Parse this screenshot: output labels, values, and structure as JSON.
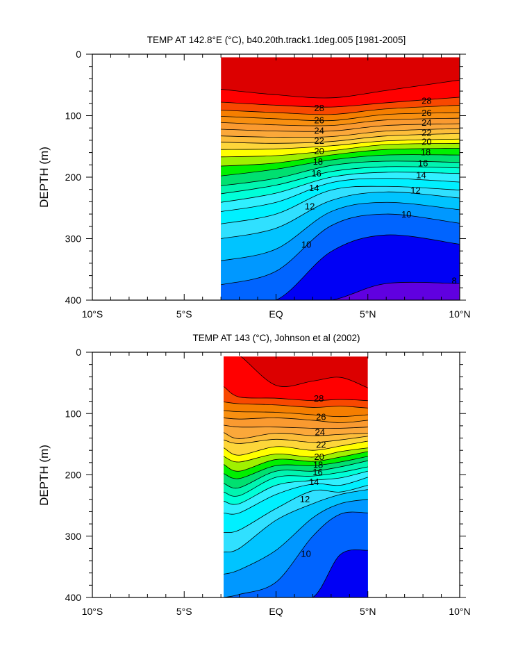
{
  "chart_data": [
    {
      "type": "contour",
      "title": "TEMP AT 142.8°E (°C), b40.20th.track1.1deg.005 [1981-2005]",
      "xlabel": "",
      "ylabel": "DEPTH (m)",
      "xlim": [
        -10,
        10
      ],
      "ylim": [
        400,
        0
      ],
      "x_ticks": [
        -10,
        -5,
        0,
        5,
        10
      ],
      "x_tick_labels": [
        "10°S",
        "5°S",
        "EQ",
        "5°N",
        "10°N"
      ],
      "y_ticks": [
        0,
        100,
        200,
        300,
        400
      ],
      "y_tick_labels": [
        "0",
        "100",
        "200",
        "300",
        "400"
      ],
      "data_extent": {
        "lat": [
          -3,
          10
        ],
        "depth_top": 5
      },
      "stations_lat": [
        -3,
        0,
        3,
        6,
        10
      ],
      "isotherms": [
        {
          "level": 29,
          "depth": [
            57,
            66,
            71,
            59,
            42
          ]
        },
        {
          "level": 28,
          "depth": [
            78,
            83,
            86,
            79,
            70
          ]
        },
        {
          "level": 27,
          "depth": [
            91,
            95,
            98,
            89,
            83
          ]
        },
        {
          "level": 26,
          "depth": [
            101,
            105,
            108,
            98,
            95
          ]
        },
        {
          "level": 25,
          "depth": [
            111,
            115,
            116,
            107,
            104
          ]
        },
        {
          "level": 24,
          "depth": [
            122,
            125,
            125,
            116,
            113
          ]
        },
        {
          "level": 23,
          "depth": [
            133,
            135,
            134,
            125,
            121
          ]
        },
        {
          "level": 22,
          "depth": [
            143,
            145,
            142,
            133,
            129
          ]
        },
        {
          "level": 21,
          "depth": [
            155,
            154,
            149,
            141,
            138
          ]
        },
        {
          "level": 20,
          "depth": [
            167,
            165,
            157,
            147,
            145
          ]
        },
        {
          "level": 19,
          "depth": [
            182,
            177,
            164,
            155,
            153
          ]
        },
        {
          "level": 18,
          "depth": [
            198,
            187,
            172,
            164,
            164
          ]
        },
        {
          "level": 17,
          "depth": [
            214,
            202,
            181,
            174,
            176
          ]
        },
        {
          "level": 16,
          "depth": [
            227,
            213,
            191,
            183,
            185
          ]
        },
        {
          "level": 15,
          "depth": [
            241,
            226,
            200,
            192,
            194
          ]
        },
        {
          "level": 14,
          "depth": [
            256,
            241,
            209,
            202,
            208
          ]
        },
        {
          "level": 13,
          "depth": [
            276,
            260,
            221,
            215,
            221
          ]
        },
        {
          "level": 12,
          "depth": [
            300,
            283,
            238,
            224,
            234
          ]
        },
        {
          "level": 11,
          "depth": [
            336,
            317,
            256,
            241,
            253
          ]
        },
        {
          "level": 10,
          "depth": [
            375,
            353,
            279,
            260,
            275
          ]
        },
        {
          "level": 9,
          "depth": [
            400,
            400,
            321,
            294,
            309
          ]
        },
        {
          "level": 8,
          "depth": [
            400,
            400,
            400,
            373,
            373
          ]
        }
      ],
      "contour_labels": [
        {
          "text": "28",
          "lat": 2.35,
          "depth": 87
        },
        {
          "text": "26",
          "lat": 2.35,
          "depth": 107
        },
        {
          "text": "24",
          "lat": 2.35,
          "depth": 124
        },
        {
          "text": "22",
          "lat": 2.35,
          "depth": 140
        },
        {
          "text": "20",
          "lat": 2.35,
          "depth": 157
        },
        {
          "text": "18",
          "lat": 2.28,
          "depth": 174
        },
        {
          "text": "16",
          "lat": 2.2,
          "depth": 193
        },
        {
          "text": "14",
          "lat": 2.07,
          "depth": 217
        },
        {
          "text": "12",
          "lat": 1.84,
          "depth": 247
        },
        {
          "text": "10",
          "lat": 1.65,
          "depth": 309
        },
        {
          "text": "28",
          "lat": 8.2,
          "depth": 75
        },
        {
          "text": "26",
          "lat": 8.2,
          "depth": 95
        },
        {
          "text": "24",
          "lat": 8.2,
          "depth": 111
        },
        {
          "text": "22",
          "lat": 8.2,
          "depth": 127
        },
        {
          "text": "20",
          "lat": 8.2,
          "depth": 142
        },
        {
          "text": "18",
          "lat": 8.15,
          "depth": 159
        },
        {
          "text": "16",
          "lat": 8.0,
          "depth": 177
        },
        {
          "text": "14",
          "lat": 7.9,
          "depth": 196
        },
        {
          "text": "12",
          "lat": 7.6,
          "depth": 221
        },
        {
          "text": "10",
          "lat": 7.1,
          "depth": 260
        },
        {
          "text": "8",
          "lat": 9.7,
          "depth": 368
        }
      ]
    },
    {
      "type": "contour",
      "title": "TEMP AT 143 (°C), Johnson et al (2002)",
      "xlabel": "",
      "ylabel": "DEPTH (m)",
      "xlim": [
        -10,
        10
      ],
      "ylim": [
        400,
        0
      ],
      "x_ticks": [
        -10,
        -5,
        0,
        5,
        10
      ],
      "x_tick_labels": [
        "10°S",
        "5°S",
        "EQ",
        "5°N",
        "10°N"
      ],
      "y_ticks": [
        0,
        100,
        200,
        300,
        400
      ],
      "y_tick_labels": [
        "0",
        "100",
        "200",
        "300",
        "400"
      ],
      "data_extent": {
        "lat": [
          -2.85,
          5
        ],
        "depth_top": 7
      },
      "stations_lat": [
        -2.85,
        -2,
        0,
        2,
        3.5,
        5
      ],
      "isotherms": [
        {
          "level": 29,
          "depth": [
            0,
            5,
            54,
            47,
            41,
            58
          ]
        },
        {
          "level": 28,
          "depth": [
            56,
            73,
            75,
            79,
            77,
            79
          ]
        },
        {
          "level": 27,
          "depth": [
            81,
            84,
            86,
            90,
            88,
            91
          ]
        },
        {
          "level": 26,
          "depth": [
            95,
            97,
            98,
            102,
            105,
            102
          ]
        },
        {
          "level": 25,
          "depth": [
            107,
            109,
            107,
            111,
            115,
            111
          ]
        },
        {
          "level": 24,
          "depth": [
            119,
            122,
            122,
            124,
            124,
            122
          ]
        },
        {
          "level": 23,
          "depth": [
            131,
            141,
            132,
            136,
            134,
            132
          ]
        },
        {
          "level": 22,
          "depth": [
            143,
            149,
            142,
            147,
            143,
            137
          ]
        },
        {
          "level": 21,
          "depth": [
            156,
            168,
            154,
            160,
            153,
            145
          ]
        },
        {
          "level": 20,
          "depth": [
            170,
            179,
            166,
            171,
            162,
            156
          ]
        },
        {
          "level": 19,
          "depth": [
            183,
            194,
            175,
            178,
            171,
            162
          ]
        },
        {
          "level": 18,
          "depth": [
            198,
            206,
            185,
            185,
            179,
            170
          ]
        },
        {
          "level": 17,
          "depth": [
            214,
            221,
            194,
            194,
            187,
            177
          ]
        },
        {
          "level": 16,
          "depth": [
            228,
            234,
            204,
            202,
            196,
            187
          ]
        },
        {
          "level": 15,
          "depth": [
            243,
            247,
            217,
            209,
            205,
            194
          ]
        },
        {
          "level": 14,
          "depth": [
            262,
            262,
            232,
            215,
            217,
            204
          ]
        },
        {
          "level": 13,
          "depth": [
            294,
            290,
            255,
            226,
            228,
            217
          ]
        },
        {
          "level": 12,
          "depth": [
            326,
            320,
            274,
            247,
            232,
            224
          ]
        },
        {
          "level": 11,
          "depth": [
            362,
            355,
            323,
            270,
            247,
            240
          ]
        },
        {
          "level": 10,
          "depth": [
            400,
            395,
            375,
            300,
            264,
            262
          ]
        },
        {
          "level": 9,
          "depth": [
            400,
            400,
            400,
            400,
            330,
            323
          ]
        }
      ],
      "contour_labels": [
        {
          "text": "28",
          "lat": 2.33,
          "depth": 75
        },
        {
          "text": "26",
          "lat": 2.45,
          "depth": 105
        },
        {
          "text": "24",
          "lat": 2.39,
          "depth": 130
        },
        {
          "text": "22",
          "lat": 2.45,
          "depth": 150
        },
        {
          "text": "20",
          "lat": 2.35,
          "depth": 170
        },
        {
          "text": "18",
          "lat": 2.29,
          "depth": 183
        },
        {
          "text": "16",
          "lat": 2.27,
          "depth": 195
        },
        {
          "text": "14",
          "lat": 2.07,
          "depth": 211
        },
        {
          "text": "12",
          "lat": 1.57,
          "depth": 239
        },
        {
          "text": "10",
          "lat": 1.63,
          "depth": 328
        }
      ]
    }
  ],
  "colors": {
    "above_29": "#dc0000",
    "band_below": {
      "29": "#ff0000",
      "28": "#f84800",
      "27": "#f57e00",
      "26": "#f88f10",
      "25": "#fa9a30",
      "24": "#fba83a",
      "23": "#fcbd3a",
      "22": "#fdd63a",
      "21": "#ffff00",
      "20": "#a0f000",
      "19": "#00f000",
      "18": "#00e070",
      "17": "#00f5b0",
      "16": "#00ffd8",
      "15": "#30f0ff",
      "14": "#00f0ff",
      "13": "#30e0ff",
      "12": "#00c4ff",
      "11": "#0098ff",
      "10": "#0064ff",
      "9": "#0000f5",
      "8": "#6000e0"
    }
  }
}
